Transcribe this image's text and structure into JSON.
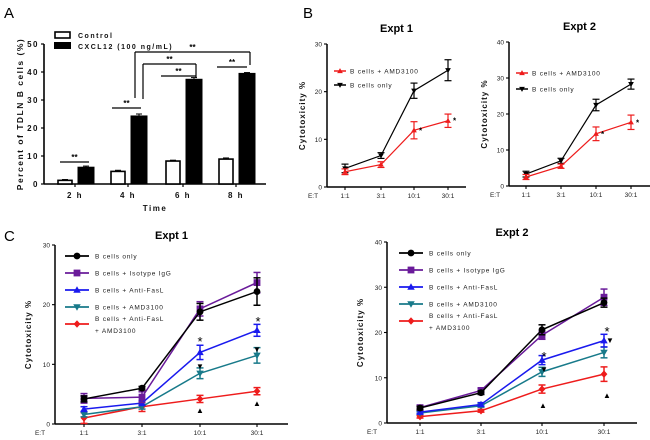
{
  "panels": {
    "A": {
      "letter": "A"
    },
    "B": {
      "letter": "B"
    },
    "C": {
      "letter": "C"
    }
  },
  "chart_data": [
    {
      "id": "A",
      "type": "bar",
      "title": "",
      "xlabel": "Time",
      "ylabel": "Percent of TDLN B cells (%)",
      "ylim": [
        0,
        50
      ],
      "yticks": [
        0,
        10,
        20,
        30,
        40,
        50
      ],
      "categories": [
        "2 h",
        "4 h",
        "6 h",
        "8 h"
      ],
      "legend_position": "top-left",
      "series": [
        {
          "name": "Control",
          "fill": "#ffffff",
          "stroke": "#000000",
          "values": [
            1.3,
            4.5,
            8.2,
            8.9
          ],
          "errors": [
            0.3,
            0.4,
            0.3,
            0.4
          ]
        },
        {
          "name": "CXCL12 (100 ng/mL)",
          "fill": "#000000",
          "stroke": "#000000",
          "values": [
            6.0,
            24.3,
            37.4,
            39.5
          ],
          "errors": [
            0.4,
            0.7,
            0.6,
            0.3
          ]
        }
      ],
      "significance": [
        {
          "label": "**",
          "between": "2 h Control vs CXCL12"
        },
        {
          "label": "**",
          "between": "4 h Control vs CXCL12"
        },
        {
          "label": "**",
          "between": "6 h Control vs CXCL12"
        },
        {
          "label": "**",
          "between": "8 h Control vs CXCL12"
        },
        {
          "label": "**",
          "between": "4 h CXCL12 vs 6 h CXCL12"
        },
        {
          "label": "**",
          "between": "4 h CXCL12 vs 8 h CXCL12"
        }
      ]
    },
    {
      "id": "B1",
      "type": "line",
      "title": "Expt 1",
      "xlabel": "E:T",
      "ylabel": "Cytotoxicity %",
      "ylim": [
        0,
        30
      ],
      "yticks": [
        0,
        10,
        20,
        30
      ],
      "x": [
        "1:1",
        "3:1",
        "10:1",
        "30:1"
      ],
      "legend_position": "top-left",
      "series": [
        {
          "name": "B cells + AMD3100",
          "color": "#ee1c1c",
          "marker": "triangle-up",
          "values": [
            3.2,
            4.7,
            11.9,
            13.9
          ],
          "errors": [
            0.6,
            0.6,
            1.8,
            1.4
          ],
          "stars": [
            "",
            "",
            "*",
            "*"
          ]
        },
        {
          "name": "B cells only",
          "color": "#000000",
          "marker": "triangle-down",
          "values": [
            3.9,
            6.6,
            20.2,
            24.5
          ],
          "errors": [
            0.9,
            0.6,
            1.6,
            2.2
          ]
        }
      ]
    },
    {
      "id": "B2",
      "type": "line",
      "title": "Expt 2",
      "xlabel": "E:T",
      "ylabel": "Cytotoxicity %",
      "ylim": [
        0,
        40
      ],
      "yticks": [
        0,
        10,
        20,
        30,
        40
      ],
      "x": [
        "1:1",
        "3:1",
        "10:1",
        "30:1"
      ],
      "legend_position": "top-left",
      "series": [
        {
          "name": "B cells + AMD3100",
          "color": "#ee1c1c",
          "marker": "triangle-up",
          "values": [
            2.5,
            5.5,
            14.5,
            17.7
          ],
          "errors": [
            0.7,
            0.6,
            1.9,
            2.0
          ],
          "stars": [
            "",
            "",
            "*",
            "*"
          ]
        },
        {
          "name": "B cells only",
          "color": "#000000",
          "marker": "triangle-down",
          "values": [
            3.3,
            7.0,
            22.5,
            28.3
          ],
          "errors": [
            0.8,
            0.7,
            1.6,
            1.4
          ]
        }
      ]
    },
    {
      "id": "C1",
      "type": "line",
      "title": "Expt 1",
      "xlabel": "E:T",
      "ylabel": "Cytotoxicity %",
      "ylim": [
        0,
        30
      ],
      "yticks": [
        0,
        10,
        20,
        30
      ],
      "x": [
        "1:1",
        "3:1",
        "10:1",
        "30:1"
      ],
      "legend_position": "top-left",
      "series": [
        {
          "name": "B cells only",
          "color": "#000000",
          "marker": "circle",
          "values": [
            4.2,
            6.0,
            18.8,
            22.2
          ],
          "errors": [
            0.5,
            0.3,
            1.4,
            2.3
          ]
        },
        {
          "name": "B cells + Isotype IgG",
          "color": "#6a1b9a",
          "marker": "square",
          "values": [
            4.3,
            4.5,
            19.3,
            23.7
          ],
          "errors": [
            0.8,
            0.9,
            1.2,
            1.7
          ]
        },
        {
          "name": "B cells + Anti-FasL",
          "color": "#1a1aee",
          "marker": "triangle-up",
          "values": [
            2.5,
            3.5,
            12.0,
            15.7
          ],
          "errors": [
            0.4,
            0.4,
            1.2,
            1.0
          ]
        },
        {
          "name": "B cells + AMD3100",
          "color": "#187a8a",
          "marker": "triangle-down",
          "values": [
            1.6,
            2.9,
            8.5,
            11.5
          ],
          "errors": [
            0.4,
            0.4,
            0.9,
            1.3
          ]
        },
        {
          "name": "B cells + Anti-FasL + AMD3100",
          "legend_lines": [
            "B cells + Anti-FasL",
            "+ AMD3100"
          ],
          "color": "#ee1c1c",
          "marker": "diamond",
          "values": [
            1.0,
            2.9,
            4.2,
            5.5
          ],
          "errors": [
            0.9,
            0.8,
            0.6,
            0.6
          ]
        }
      ],
      "annotations": [
        {
          "text": "*",
          "at": "10:1 above Anti-FasL"
        },
        {
          "text": "*",
          "at": "30:1 above Anti-FasL"
        },
        {
          "text": "▼",
          "at": "10:1 below Anti-FasL"
        },
        {
          "text": "▼",
          "at": "30:1 below Anti-FasL"
        },
        {
          "text": "▲",
          "at": "10:1 below Anti-FasL + AMD3100"
        },
        {
          "text": "▲",
          "at": "30:1 below Anti-FasL + AMD3100"
        }
      ]
    },
    {
      "id": "C2",
      "type": "line",
      "title": "Expt 2",
      "xlabel": "E:T",
      "ylabel": "Cytotoxicity %",
      "ylim": [
        0,
        40
      ],
      "yticks": [
        0,
        10,
        20,
        30,
        40
      ],
      "x": [
        "1:1",
        "3:1",
        "10:1",
        "30:1"
      ],
      "legend_position": "top-left",
      "series": [
        {
          "name": "B cells only",
          "color": "#000000",
          "marker": "circle",
          "values": [
            3.3,
            6.7,
            20.6,
            26.6
          ],
          "errors": [
            0.4,
            0.4,
            1.1,
            1.0
          ]
        },
        {
          "name": "B cells + Isotype IgG",
          "color": "#6a1b9a",
          "marker": "square",
          "values": [
            3.4,
            7.2,
            19.4,
            27.8
          ],
          "errors": [
            0.5,
            0.5,
            0.9,
            1.8
          ]
        },
        {
          "name": "B cells + Anti-FasL",
          "color": "#1a1aee",
          "marker": "triangle-up",
          "values": [
            2.4,
            4.1,
            13.9,
            18.2
          ],
          "errors": [
            0.3,
            0.4,
            1.0,
            1.4
          ]
        },
        {
          "name": "B cells + AMD3100",
          "color": "#187a8a",
          "marker": "triangle-down",
          "values": [
            2.2,
            3.8,
            11.3,
            15.6
          ],
          "errors": [
            0.3,
            0.3,
            1.0,
            1.2
          ]
        },
        {
          "name": "B cells + Anti-FasL + AMD3100",
          "legend_lines": [
            "B cells + Anti-FasL",
            "+ AMD3100"
          ],
          "color": "#ee1c1c",
          "marker": "diamond",
          "values": [
            1.4,
            2.7,
            7.5,
            10.8
          ],
          "errors": [
            0.3,
            0.3,
            0.9,
            1.6
          ]
        }
      ],
      "annotations": [
        {
          "text": "*",
          "at": "10:1 above Anti-FasL"
        },
        {
          "text": "*",
          "at": "30:1 above Anti-FasL"
        },
        {
          "text": "▼",
          "at": "10:1 beside Anti-FasL"
        },
        {
          "text": "▼",
          "at": "30:1 beside Anti-FasL"
        },
        {
          "text": "▲",
          "at": "10:1 below Anti-FasL + AMD3100"
        },
        {
          "text": "▲",
          "at": "30:1 below Anti-FasL + AMD3100"
        }
      ]
    }
  ]
}
